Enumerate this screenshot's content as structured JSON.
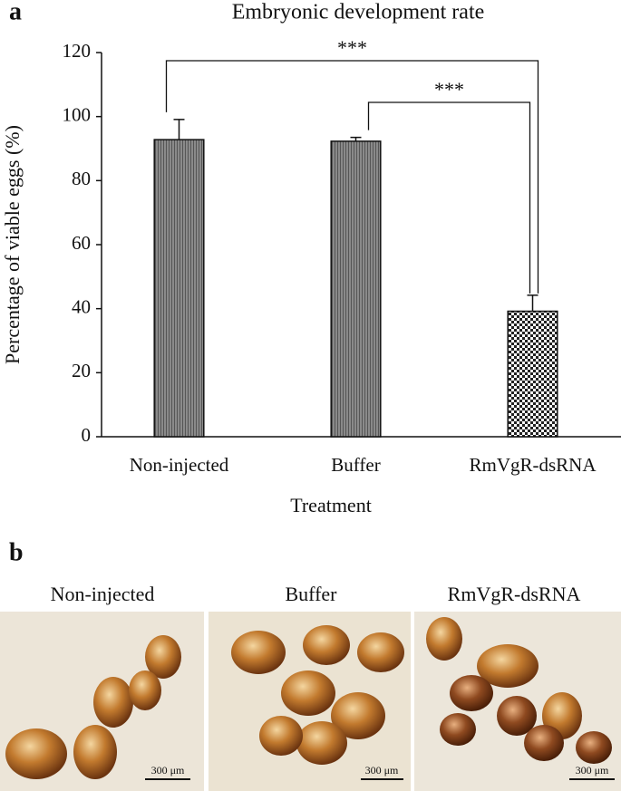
{
  "chart_data": {
    "type": "bar",
    "panel_label": "a",
    "title": "Embryonic development rate",
    "y_label": "Percentage of viable eggs (%)",
    "x_label": "Treatment",
    "categories": [
      "Non-injected",
      "Buffer",
      "RmVgR-dsRNA"
    ],
    "values": [
      92.8,
      92.3,
      39.2
    ],
    "errors": [
      6.3,
      1.2,
      5.0
    ],
    "color": "#7f7f7f",
    "patterns": [
      "stripes",
      "stripes",
      "checker"
    ],
    "ylim": [
      0,
      120
    ],
    "yticks": [
      0,
      20,
      40,
      60,
      80,
      100,
      120
    ],
    "significance": [
      "***",
      "***"
    ]
  },
  "panel_b": {
    "label": "b",
    "images": [
      {
        "title": "Non-injected",
        "scale": "300 μm"
      },
      {
        "title": "Buffer",
        "scale": "300 μm"
      },
      {
        "title": "RmVgR-dsRNA",
        "scale": "300 μm"
      }
    ]
  }
}
